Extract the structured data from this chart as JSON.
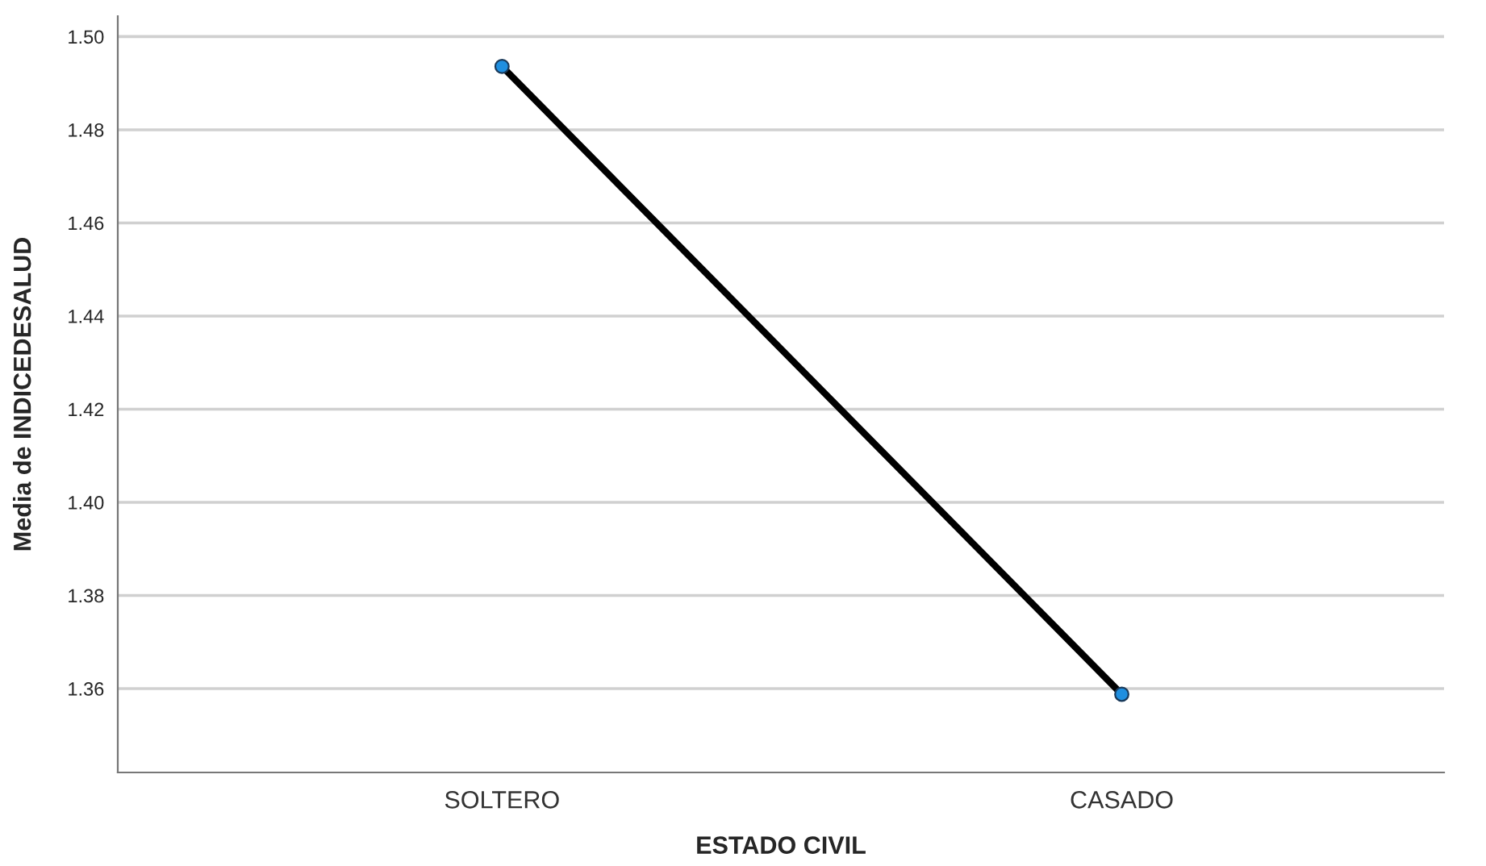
{
  "chart_data": {
    "type": "line",
    "xlabel": "ESTADO CIVIL",
    "ylabel": "Media de INDICEDESALUD",
    "categories": [
      "SOLTERO",
      "CASADO"
    ],
    "series": [
      {
        "color": "#000000",
        "values": [
          1.4936,
          1.3588
        ]
      }
    ],
    "ylim": [
      1.342,
      1.5044
    ],
    "yticks": [
      {
        "value": 1.36,
        "label": "1.36"
      },
      {
        "value": 1.38,
        "label": "1.38"
      },
      {
        "value": 1.4,
        "label": "1.40"
      },
      {
        "value": 1.42,
        "label": "1.42"
      },
      {
        "value": 1.44,
        "label": "1.44"
      },
      {
        "value": 1.46,
        "label": "1.46"
      },
      {
        "value": 1.48,
        "label": "1.48"
      },
      {
        "value": 1.5,
        "label": "1.50"
      }
    ],
    "grid": "y",
    "marker": "circle",
    "line_style": "solid"
  }
}
